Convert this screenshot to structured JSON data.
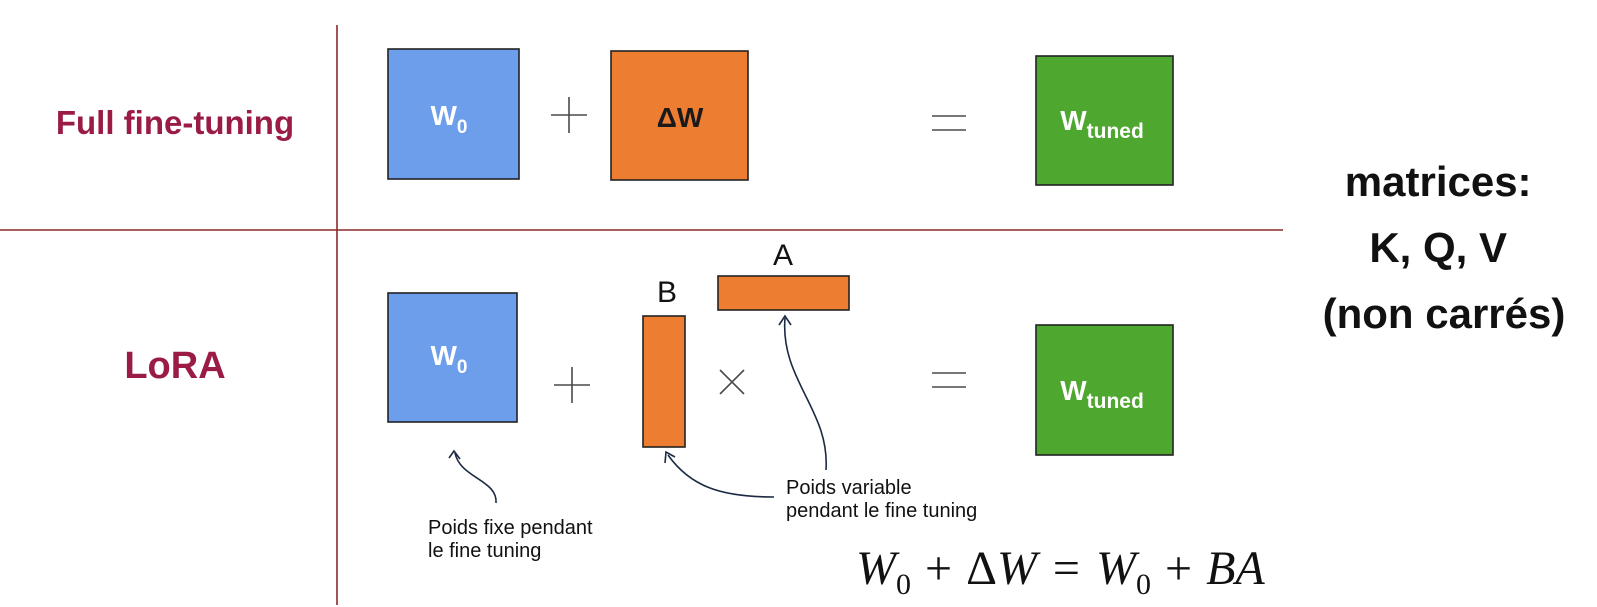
{
  "rows": {
    "full": {
      "label": "Full fine-tuning"
    },
    "lora": {
      "label": "LoRA"
    }
  },
  "matrices": {
    "w0": {
      "base": "W",
      "sub": "0"
    },
    "delta_w": {
      "label": "ΔW"
    },
    "w_tuned": {
      "base": "W",
      "sub": "tuned"
    },
    "a": {
      "label": "A"
    },
    "b": {
      "label": "B"
    }
  },
  "annotations": {
    "fixed": [
      "Poids fixe pendant",
      "le fine tuning"
    ],
    "variable": [
      "Poids variable",
      "pendant le fine tuning"
    ]
  },
  "side_note": [
    "matrices:",
    "K, Q, V",
    "(non carrés)"
  ],
  "formula": {
    "lhs_w": "W",
    "lhs_sub": "0",
    "plus1": "+",
    "delta": "Δ",
    "delta_w": "W",
    "equals": "=",
    "rhs_w": "W",
    "rhs_sub": "0",
    "plus2": "+",
    "ba": "BA"
  },
  "colors": {
    "frozen": "#6d9eeb",
    "update": "#ed7d31",
    "tuned": "#4ea72e",
    "row_label": "#9a1c45",
    "divider": "#8b2a2a"
  }
}
